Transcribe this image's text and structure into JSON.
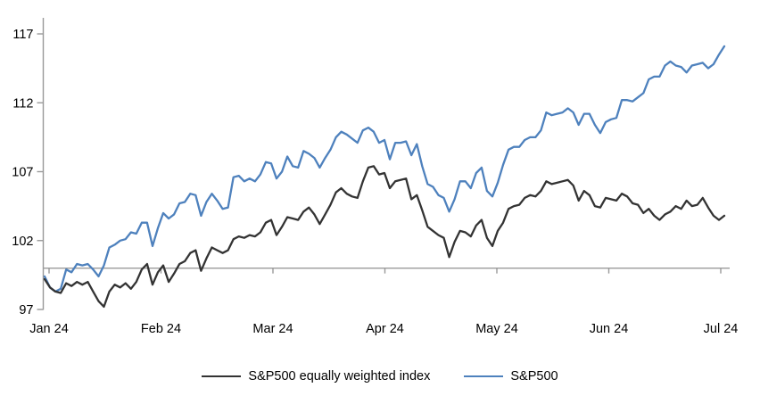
{
  "chart_data": {
    "type": "line",
    "title": "",
    "xlabel": "",
    "ylabel": "",
    "x_tick_labels": [
      "Jan 24",
      "Feb 24",
      "Mar 24",
      "Apr 24",
      "May 24",
      "Jun 24",
      "Jul 24"
    ],
    "y_ticks": [
      97,
      102,
      107,
      112,
      117
    ],
    "ylim": [
      97,
      117
    ],
    "baseline_value": 100,
    "x_unit": "trading days, Jan 2024 - early Jul 2024",
    "grid": false,
    "legend_position": "bottom-center",
    "axis_color": "#9a9a9a",
    "tick_label_color": "#000000",
    "series": [
      {
        "name": "S&P500 equally weighted index",
        "color": "#333333",
        "values": [
          99.2,
          98.6,
          98.3,
          98.2,
          98.9,
          98.7,
          99.0,
          98.8,
          99.0,
          98.3,
          97.6,
          97.2,
          98.3,
          98.8,
          98.6,
          98.9,
          98.5,
          99.0,
          99.9,
          100.3,
          98.8,
          99.7,
          100.2,
          99.0,
          99.6,
          100.3,
          100.5,
          101.1,
          101.3,
          99.8,
          100.7,
          101.5,
          101.3,
          101.1,
          101.3,
          102.1,
          102.3,
          102.2,
          102.4,
          102.3,
          102.6,
          103.3,
          103.5,
          102.4,
          103.0,
          103.7,
          103.6,
          103.5,
          104.1,
          104.4,
          103.9,
          103.2,
          103.9,
          104.6,
          105.5,
          105.8,
          105.4,
          105.2,
          105.1,
          106.3,
          107.3,
          107.4,
          106.8,
          106.9,
          105.8,
          106.3,
          106.4,
          106.5,
          105.0,
          105.3,
          104.2,
          103.0,
          102.7,
          102.4,
          102.2,
          100.8,
          101.9,
          102.7,
          102.6,
          102.3,
          103.1,
          103.5,
          102.2,
          101.6,
          102.7,
          103.3,
          104.3,
          104.5,
          104.6,
          105.1,
          105.3,
          105.2,
          105.6,
          106.3,
          106.1,
          106.2,
          106.3,
          106.4,
          106.0,
          104.9,
          105.6,
          105.3,
          104.5,
          104.4,
          105.1,
          105.0,
          104.9,
          105.4,
          105.2,
          104.7,
          104.6,
          104.0,
          104.3,
          103.8,
          103.5,
          103.9,
          104.1,
          104.5,
          104.3,
          104.9,
          104.5,
          104.6,
          105.1,
          104.4,
          103.8,
          103.5,
          103.8
        ]
      },
      {
        "name": "S&P500",
        "color": "#4e81bd",
        "values": [
          99.4,
          98.6,
          98.3,
          98.5,
          99.9,
          99.7,
          100.3,
          100.2,
          100.3,
          99.9,
          99.4,
          100.2,
          101.5,
          101.7,
          102.0,
          102.1,
          102.6,
          102.5,
          103.3,
          103.3,
          101.6,
          102.9,
          104.0,
          103.6,
          103.9,
          104.7,
          104.8,
          105.4,
          105.3,
          103.8,
          104.8,
          105.4,
          104.9,
          104.3,
          104.4,
          106.6,
          106.7,
          106.3,
          106.5,
          106.3,
          106.8,
          107.7,
          107.6,
          106.5,
          107.0,
          108.1,
          107.4,
          107.3,
          108.5,
          108.3,
          108.0,
          107.3,
          108.0,
          108.6,
          109.5,
          109.9,
          109.7,
          109.4,
          109.1,
          110.0,
          110.2,
          109.9,
          109.1,
          109.3,
          107.9,
          109.1,
          109.1,
          109.2,
          108.2,
          109.0,
          107.4,
          106.1,
          105.9,
          105.3,
          105.1,
          104.1,
          105.0,
          106.3,
          106.3,
          105.8,
          106.9,
          107.3,
          105.6,
          105.2,
          106.2,
          107.5,
          108.6,
          108.8,
          108.8,
          109.3,
          109.5,
          109.5,
          110.0,
          111.3,
          111.1,
          111.2,
          111.3,
          111.6,
          111.3,
          110.4,
          111.2,
          111.2,
          110.4,
          109.8,
          110.6,
          110.8,
          110.9,
          112.2,
          112.2,
          112.1,
          112.4,
          112.7,
          113.7,
          113.9,
          113.9,
          114.7,
          115.0,
          114.7,
          114.6,
          114.2,
          114.7,
          114.8,
          114.9,
          114.5,
          114.8,
          115.5,
          116.1
        ]
      }
    ]
  }
}
